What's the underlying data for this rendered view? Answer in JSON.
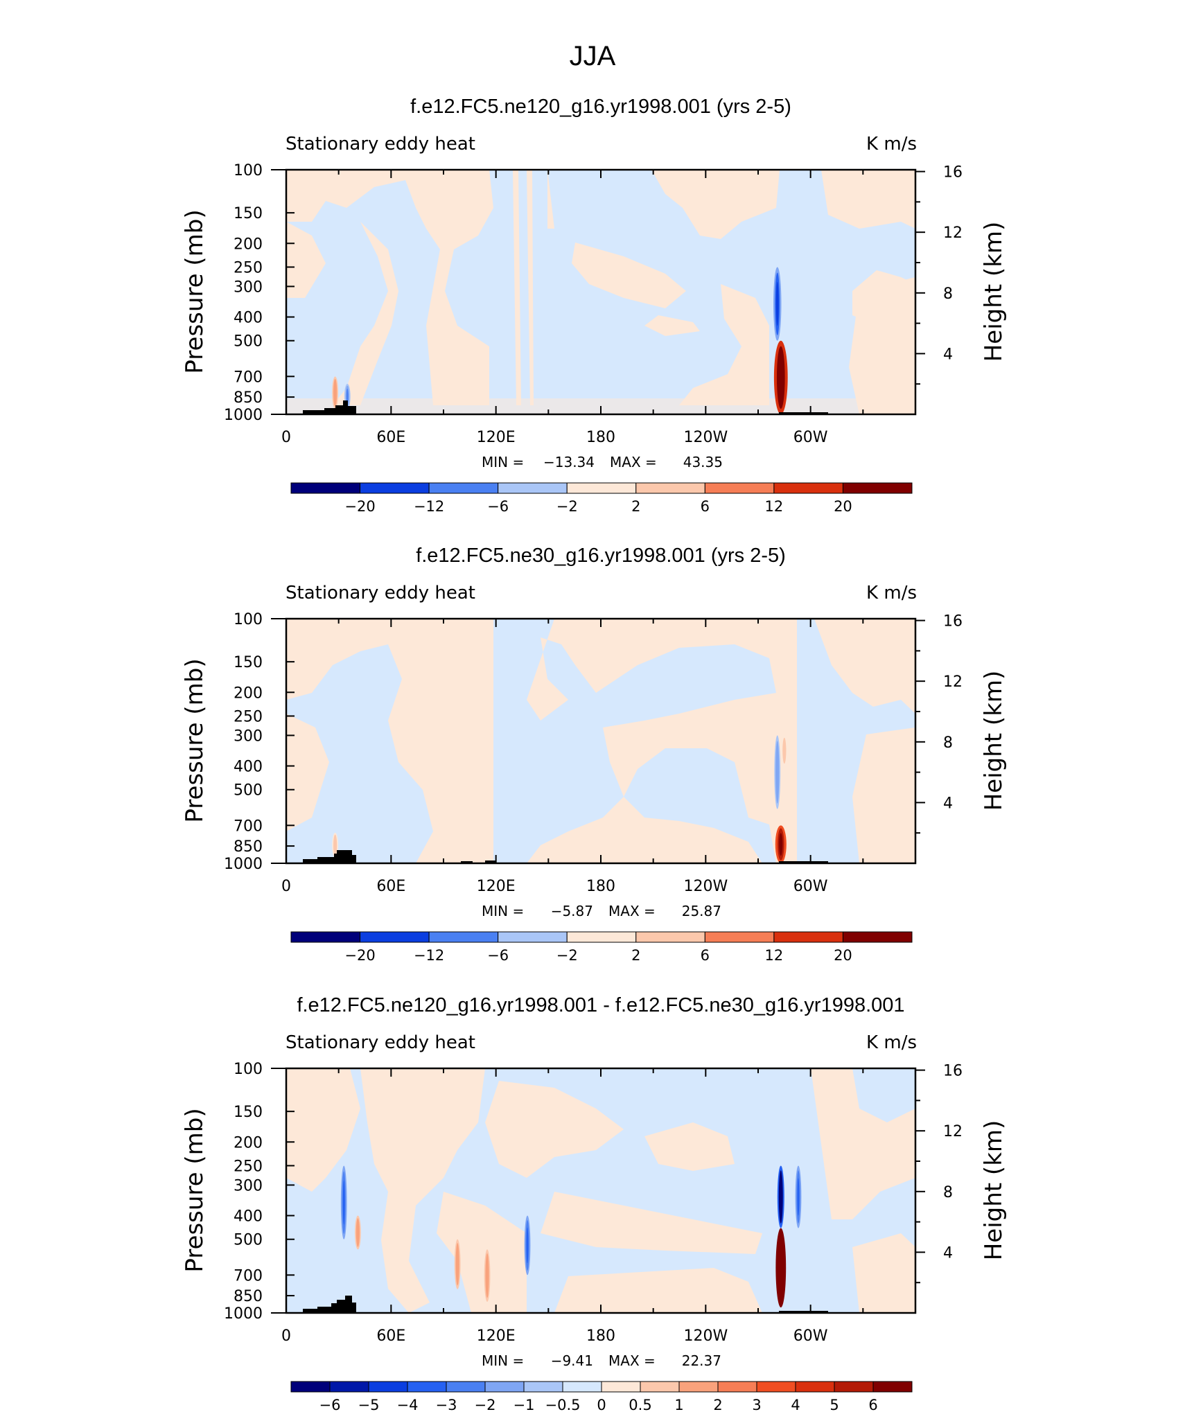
{
  "figure": {
    "title": "JJA",
    "colors": {
      "neg_light": "#d6e8fd",
      "pos_light": "#fde8d8",
      "topo": "#000000"
    }
  },
  "chart_data": [
    {
      "type": "heatmap",
      "title": "f.e12.FC5.ne120_g16.yr1998.001 (yrs 2-5)",
      "subtitle_left": "Stationary eddy heat",
      "subtitle_right": "K m/s",
      "ylabel": "Pressure (mb)",
      "ylabel_right": "Height (km)",
      "x_ticks": [
        {
          "lon": 0,
          "label": "0"
        },
        {
          "lon": 60,
          "label": "60E"
        },
        {
          "lon": 120,
          "label": "120E"
        },
        {
          "lon": 180,
          "label": "180"
        },
        {
          "lon": 240,
          "label": "120W"
        },
        {
          "lon": 300,
          "label": "60W"
        }
      ],
      "y_ticks": [
        "100",
        "150",
        "200",
        "250",
        "300",
        "400",
        "500",
        "700",
        "850",
        "1000"
      ],
      "y_ticks_right": [
        "16",
        "12",
        "8",
        "4"
      ],
      "stats": {
        "min_label": "MIN =",
        "min": "−13.34",
        "max_label": "MAX =",
        "max": "43.35"
      },
      "colorbar_labels": [
        "−20",
        "−12",
        "−6",
        "−2",
        "2",
        "6",
        "12",
        "20"
      ],
      "features": [
        {
          "lon": 283,
          "p_top": 500,
          "p_bottom": 1000,
          "value": 43.35
        },
        {
          "lon": 281,
          "p_top": 250,
          "p_bottom": 500,
          "value": -13.34
        },
        {
          "lon": 28,
          "p_top": 700,
          "p_bottom": 950,
          "value": 6
        },
        {
          "lon": 35,
          "p_top": 750,
          "p_bottom": 950,
          "value": -6
        }
      ]
    },
    {
      "type": "heatmap",
      "title": "f.e12.FC5.ne30_g16.yr1998.001 (yrs 2-5)",
      "subtitle_left": "Stationary eddy heat",
      "subtitle_right": "K m/s",
      "ylabel": "Pressure (mb)",
      "ylabel_right": "Height (km)",
      "x_ticks": [
        {
          "lon": 0,
          "label": "0"
        },
        {
          "lon": 60,
          "label": "60E"
        },
        {
          "lon": 120,
          "label": "120E"
        },
        {
          "lon": 180,
          "label": "180"
        },
        {
          "lon": 240,
          "label": "120W"
        },
        {
          "lon": 300,
          "label": "60W"
        }
      ],
      "y_ticks": [
        "100",
        "150",
        "200",
        "250",
        "300",
        "400",
        "500",
        "700",
        "850",
        "1000"
      ],
      "y_ticks_right": [
        "16",
        "12",
        "8",
        "4"
      ],
      "stats": {
        "min_label": "MIN =",
        "min": "−5.87",
        "max_label": "MAX =",
        "max": "25.87"
      },
      "colorbar_labels": [
        "−20",
        "−12",
        "−6",
        "−2",
        "2",
        "6",
        "12",
        "20"
      ],
      "features": [
        {
          "lon": 283,
          "p_top": 700,
          "p_bottom": 1000,
          "value": 25.87
        },
        {
          "lon": 281,
          "p_top": 300,
          "p_bottom": 600,
          "value": -5.87
        },
        {
          "lon": 285,
          "p_top": 300,
          "p_bottom": 400,
          "value": 3
        },
        {
          "lon": 28,
          "p_top": 750,
          "p_bottom": 950,
          "value": 3
        }
      ]
    },
    {
      "type": "heatmap",
      "title": "f.e12.FC5.ne120_g16.yr1998.001 - f.e12.FC5.ne30_g16.yr1998.001",
      "subtitle_left": "Stationary eddy heat",
      "subtitle_right": "K m/s",
      "ylabel": "Pressure (mb)",
      "ylabel_right": "Height (km)",
      "x_ticks": [
        {
          "lon": 0,
          "label": "0"
        },
        {
          "lon": 60,
          "label": "60E"
        },
        {
          "lon": 120,
          "label": "120E"
        },
        {
          "lon": 180,
          "label": "180"
        },
        {
          "lon": 240,
          "label": "120W"
        },
        {
          "lon": 300,
          "label": "60W"
        }
      ],
      "y_ticks": [
        "100",
        "150",
        "200",
        "250",
        "300",
        "400",
        "500",
        "700",
        "850",
        "1000"
      ],
      "y_ticks_right": [
        "16",
        "12",
        "8",
        "4"
      ],
      "stats": {
        "min_label": "MIN =",
        "min": "−9.41",
        "max_label": "MAX =",
        "max": "22.37"
      },
      "colorbar_labels": [
        "−6",
        "−5",
        "−4",
        "−3",
        "−2",
        "−1",
        "−0.5",
        "0",
        "0.5",
        "1",
        "2",
        "3",
        "4",
        "5",
        "6"
      ],
      "features": [
        {
          "lon": 283,
          "p_top": 450,
          "p_bottom": 950,
          "value": 22.37
        },
        {
          "lon": 283,
          "p_top": 250,
          "p_bottom": 450,
          "value": -9.41
        },
        {
          "lon": 293,
          "p_top": 250,
          "p_bottom": 450,
          "value": -3
        },
        {
          "lon": 33,
          "p_top": 250,
          "p_bottom": 500,
          "value": -3
        },
        {
          "lon": 41,
          "p_top": 400,
          "p_bottom": 550,
          "value": 1.5
        },
        {
          "lon": 98,
          "p_top": 500,
          "p_bottom": 800,
          "value": 2
        },
        {
          "lon": 138,
          "p_top": 400,
          "p_bottom": 700,
          "value": -3
        },
        {
          "lon": 115,
          "p_top": 550,
          "p_bottom": 900,
          "value": 2
        }
      ]
    }
  ]
}
